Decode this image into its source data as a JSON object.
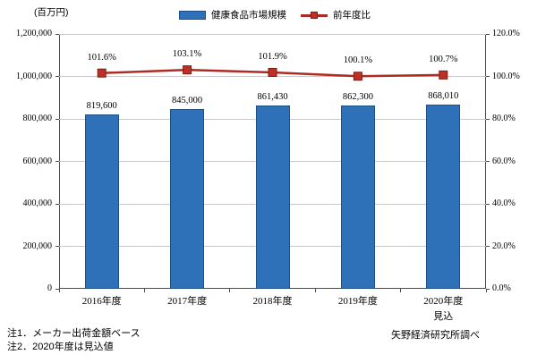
{
  "chart_data": {
    "type": "bar",
    "combo": "bar+line",
    "title": "",
    "unit": "(百万円)",
    "legend_position": "top",
    "grid": true,
    "categories": [
      {
        "label": "2016年度",
        "sub": ""
      },
      {
        "label": "2017年度",
        "sub": ""
      },
      {
        "label": "2018年度",
        "sub": ""
      },
      {
        "label": "2019年度",
        "sub": ""
      },
      {
        "label": "2020年度",
        "sub": "見込"
      }
    ],
    "series": [
      {
        "name": "健康食品市場規模",
        "type": "bar",
        "axis": "left",
        "values": [
          819600,
          845000,
          861430,
          862300,
          868010
        ],
        "labels": [
          "819,600",
          "845,000",
          "861,430",
          "862,300",
          "868,010"
        ],
        "color": "#2F71B8",
        "border_color": "#1C4F87"
      },
      {
        "name": "前年度比",
        "type": "line",
        "axis": "right",
        "values": [
          101.6,
          103.1,
          101.9,
          100.1,
          100.7
        ],
        "labels": [
          "101.6%",
          "103.1%",
          "101.9%",
          "100.1%",
          "100.7%"
        ],
        "color": "#AE2B23",
        "marker_color": "#BE3026",
        "marker_border": "#7E1B13"
      }
    ],
    "axes": {
      "left": {
        "min": 0,
        "max": 1200000,
        "tick_values": [
          0,
          200000,
          400000,
          600000,
          800000,
          1000000,
          1200000
        ],
        "tick_labels": [
          "0",
          "200,000",
          "400,000",
          "600,000",
          "800,000",
          "1,000,000",
          "1,200,000"
        ]
      },
      "right": {
        "min": 0,
        "max": 120,
        "tick_values": [
          0,
          20,
          40,
          60,
          80,
          100,
          120
        ],
        "tick_labels": [
          "0.0%",
          "20.0%",
          "40.0%",
          "60.0%",
          "80.0%",
          "100.0%",
          "120.0%"
        ]
      }
    }
  },
  "notes": [
    "注1．メーカー出荷金額ベース",
    "注2．2020年度は見込値"
  ],
  "credit": "矢野経済研究所調べ"
}
